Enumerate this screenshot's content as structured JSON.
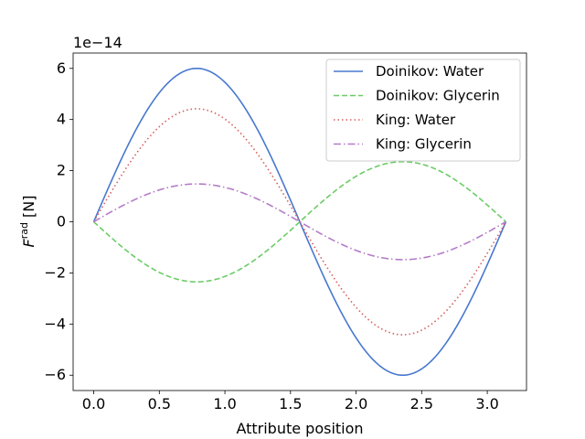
{
  "chart_data": {
    "type": "line",
    "title": "",
    "xlabel": "Attribute position",
    "ylabel_main": "F",
    "ylabel_sup": "rad",
    "ylabel_unit": " [N]",
    "y_offset_label": "1e−14",
    "xlim": [
      -0.157,
      3.299
    ],
    "ylim": [
      -6.6,
      6.6
    ],
    "x_ticks": [
      0.0,
      0.5,
      1.0,
      1.5,
      2.0,
      2.5,
      3.0
    ],
    "x_tick_labels": [
      "0.0",
      "0.5",
      "1.0",
      "1.5",
      "2.0",
      "2.5",
      "3.0"
    ],
    "y_ticks": [
      -6,
      -4,
      -2,
      0,
      2,
      4,
      6
    ],
    "y_tick_labels": [
      "−6",
      "−4",
      "−2",
      "0",
      "2",
      "4",
      "6"
    ],
    "grid": false,
    "legend_position": "upper-right",
    "x_domain": [
      0,
      3.14159
    ],
    "series": [
      {
        "name": "Doinikov: Water",
        "amplitude": 6.0,
        "function": "A*sin(2x)",
        "color": "#4878CF",
        "style": "solid"
      },
      {
        "name": "Doinikov: Glycerin",
        "amplitude": -2.35,
        "function": "A*sin(2x)",
        "color": "#6ACC65",
        "style": "dashed"
      },
      {
        "name": "King: Water",
        "amplitude": 4.42,
        "function": "A*sin(2x)",
        "color": "#D65F5F",
        "style": "dotted"
      },
      {
        "name": "King: Glycerin",
        "amplitude": 1.48,
        "function": "A*sin(2x)",
        "color": "#B47CC7",
        "style": "dashdot"
      }
    ]
  }
}
